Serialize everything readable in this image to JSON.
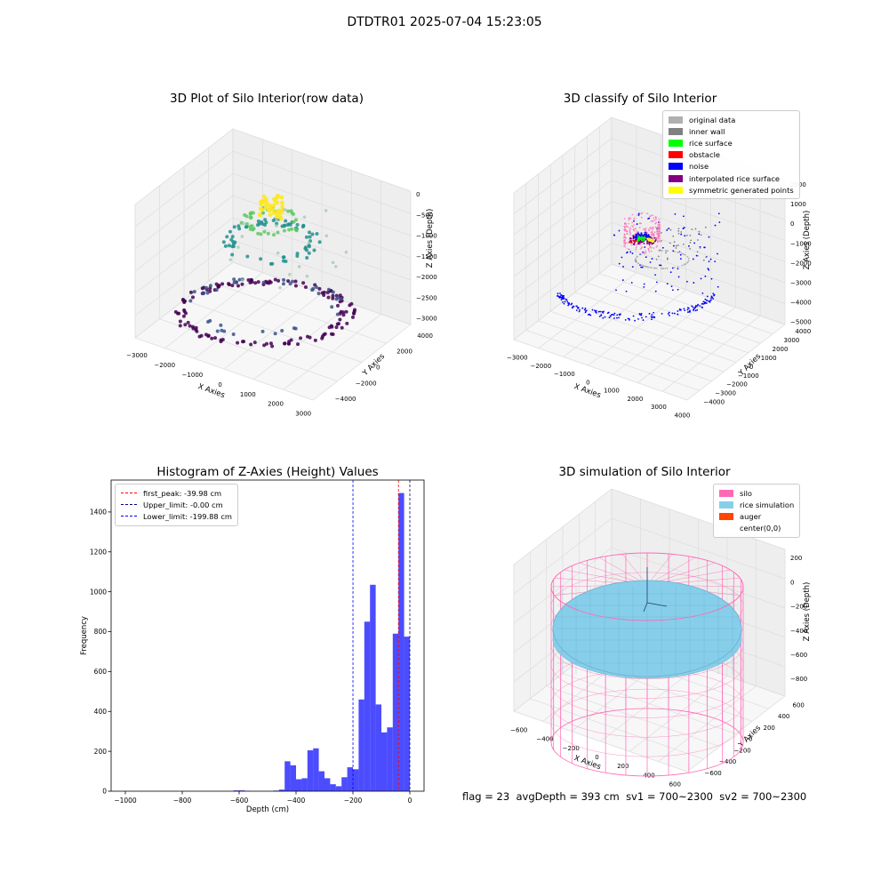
{
  "suptitle": "DTDTR01 2025-07-04 15:23:05",
  "footer": {
    "flag": "flag = 23",
    "avg_depth": "avgDepth = 393 cm",
    "sv1": "sv1 = 700~2300",
    "sv2": "sv2 = 700~2300"
  },
  "chart_data": [
    {
      "type": "scatter",
      "projection": "3d",
      "title": "3D Plot of Silo Interior(row data)",
      "xlabel": "X Axies",
      "ylabel": "Y Axies",
      "zlabel": "Z Axies (Depth)",
      "xticks": [
        "−3000",
        "−2000",
        "−1000",
        "0",
        "1000",
        "2000",
        "3000"
      ],
      "yticks": [
        "−4000",
        "−2000",
        "0",
        "2000",
        "4000"
      ],
      "zticks": [
        "−3000",
        "−2500",
        "−2000",
        "−1500",
        "−1000",
        "−500",
        "0"
      ],
      "xlim": [
        -3200,
        3400
      ],
      "ylim": [
        -4600,
        4600
      ],
      "zlim": [
        -3300,
        100
      ],
      "colormap": "viridis",
      "colors": [
        "#440154",
        "#3b528b",
        "#21918c",
        "#5ec962",
        "#fde725"
      ]
    },
    {
      "type": "scatter",
      "projection": "3d",
      "title": "3D classify of Silo Interior",
      "xlabel": "X Axies",
      "ylabel": "Y Axies",
      "zlabel": "Z Axies (Depth)",
      "xticks": [
        "−3000",
        "−2000",
        "−1000",
        "0",
        "1000",
        "2000",
        "3000",
        "4000"
      ],
      "yticks": [
        "−4000",
        "−3000",
        "−2000",
        "−1000",
        "0",
        "1000",
        "2000",
        "3000",
        "4000"
      ],
      "zticks": [
        "−5000",
        "−4000",
        "−3000",
        "−2000",
        "−1000",
        "0",
        "1000",
        "2000"
      ],
      "legend_position": "top-right",
      "legend": [
        {
          "label": "original data",
          "color": "#b0b0b0"
        },
        {
          "label": "inner wall",
          "color": "#808080"
        },
        {
          "label": "rice surface",
          "color": "#00ff00"
        },
        {
          "label": "obstacle",
          "color": "#ff0000"
        },
        {
          "label": "noise",
          "color": "#0000ff"
        },
        {
          "label": "interpolated rice surface",
          "color": "#800080"
        },
        {
          "label": "symmetric generated points",
          "color": "#ffff00"
        }
      ]
    },
    {
      "type": "bar",
      "title": "Histogram of Z-Axies (Height) Values",
      "xlabel": "Depth (cm)",
      "ylabel": "Frequency",
      "xlim": [
        -1050,
        50
      ],
      "ylim": [
        0,
        1560
      ],
      "xticks": [
        -1000,
        -800,
        -600,
        -400,
        -200,
        0
      ],
      "yticks": [
        0,
        200,
        400,
        600,
        800,
        1000,
        1200,
        1400
      ],
      "bar_color": "#0000ff",
      "bin_width": 20,
      "bins": [
        {
          "x0": -620,
          "value": 4
        },
        {
          "x0": -600,
          "value": 4
        },
        {
          "x0": -580,
          "value": 2
        },
        {
          "x0": -480,
          "value": 3
        },
        {
          "x0": -460,
          "value": 8
        },
        {
          "x0": -440,
          "value": 150
        },
        {
          "x0": -420,
          "value": 130
        },
        {
          "x0": -400,
          "value": 60
        },
        {
          "x0": -380,
          "value": 65
        },
        {
          "x0": -360,
          "value": 205
        },
        {
          "x0": -340,
          "value": 215
        },
        {
          "x0": -320,
          "value": 100
        },
        {
          "x0": -300,
          "value": 65
        },
        {
          "x0": -280,
          "value": 35
        },
        {
          "x0": -260,
          "value": 25
        },
        {
          "x0": -240,
          "value": 70
        },
        {
          "x0": -220,
          "value": 120
        },
        {
          "x0": -200,
          "value": 110
        },
        {
          "x0": -180,
          "value": 460
        },
        {
          "x0": -160,
          "value": 850
        },
        {
          "x0": -140,
          "value": 1035
        },
        {
          "x0": -120,
          "value": 435
        },
        {
          "x0": -100,
          "value": 295
        },
        {
          "x0": -80,
          "value": 320
        },
        {
          "x0": -60,
          "value": 790
        },
        {
          "x0": -40,
          "value": 1495
        },
        {
          "x0": -20,
          "value": 775
        }
      ],
      "vlines": [
        {
          "label": "first_peak: -39.98 cm",
          "x": -39.98,
          "color": "#ff0000"
        },
        {
          "label": "Upper_limit: -0.00 cm",
          "x": 0,
          "color": "#00008b"
        },
        {
          "label": "Lower_limit: -199.88 cm",
          "x": -199.88,
          "color": "#0000ff"
        }
      ],
      "legend_position": "top-left"
    },
    {
      "type": "surface",
      "projection": "3d",
      "title": "3D simulation of Silo Interior",
      "xlabel": "X Axies",
      "ylabel": "Y Axies",
      "zlabel": "Z Axies (Depth)",
      "xticks": [
        "−600",
        "−400",
        "−200",
        "0",
        "200",
        "400",
        "600"
      ],
      "yticks": [
        "−600",
        "−400",
        "−200",
        "0",
        "200",
        "400",
        "600"
      ],
      "zticks": [
        "−800",
        "−600",
        "−400",
        "−200",
        "0",
        "200"
      ],
      "legend_position": "top-right",
      "legend": [
        {
          "label": "silo",
          "color": "#ff69b4"
        },
        {
          "label": "rice simulation",
          "color": "#87ceeb"
        },
        {
          "label": "auger",
          "color": "#ff4500"
        },
        {
          "label": "center(0,0)",
          "color": "#ffffff"
        }
      ]
    }
  ]
}
